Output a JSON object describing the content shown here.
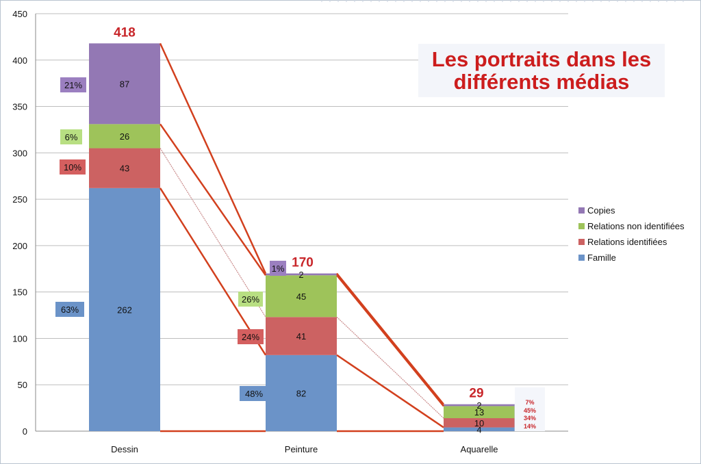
{
  "title_lines": [
    "Les portraits dans les",
    "différents médias"
  ],
  "chart_data": {
    "type": "bar",
    "stacked": true,
    "categories": [
      "Dessin",
      "Peinture",
      "Aquarelle"
    ],
    "series": [
      {
        "name": "Famille",
        "color": "#6b93c8",
        "values": [
          262,
          82,
          4
        ],
        "percent_labels": [
          "63%",
          "48%",
          "14%"
        ],
        "percent_color": "#6b93c8"
      },
      {
        "name": "Relations identifiées",
        "color": "#cc6262",
        "values": [
          43,
          41,
          10
        ],
        "percent_labels": [
          "10%",
          "24%",
          "34%"
        ],
        "percent_color": "#d45f5f"
      },
      {
        "name": "Relations non identifiées",
        "color": "#9ec35a",
        "values": [
          26,
          45,
          13
        ],
        "percent_labels": [
          "6%",
          "26%",
          "45%"
        ],
        "percent_color": "#b8df82"
      },
      {
        "name": "Copies",
        "color": "#9378b4",
        "values": [
          87,
          2,
          2
        ],
        "percent_labels": [
          "21%",
          "1%",
          "7%"
        ],
        "percent_color": "#9b7fc0"
      }
    ],
    "totals": [
      "418",
      "170",
      "29"
    ],
    "ylim": [
      0,
      450
    ],
    "yticks": [
      "0",
      "50",
      "100",
      "150",
      "200",
      "250",
      "300",
      "350",
      "400",
      "450"
    ],
    "grid": true,
    "legend_position": "right"
  }
}
